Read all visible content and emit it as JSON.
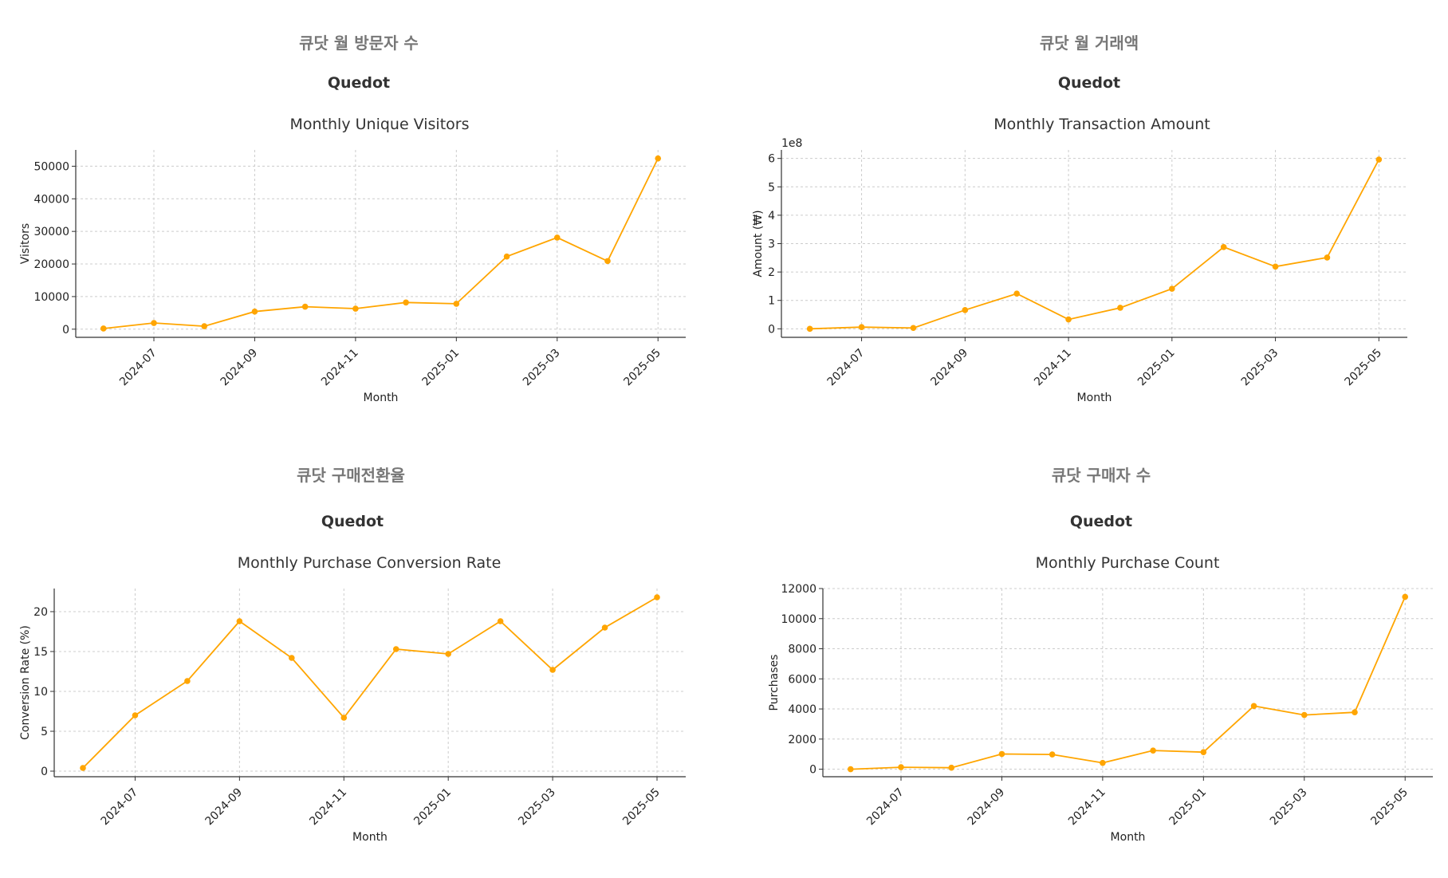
{
  "series_color": "#FFA500",
  "chart_data": [
    {
      "type": "line",
      "kr_title": "큐닷 월 방문자 수",
      "brand": "Quedot",
      "title": "Monthly Unique Visitors",
      "xlabel": "Month",
      "ylabel": "Visitors",
      "y_ticks": [
        "0",
        "10000",
        "20000",
        "30000",
        "40000",
        "50000"
      ],
      "y_tick_values": [
        0,
        10000,
        20000,
        30000,
        40000,
        50000
      ],
      "ylim": [
        -2500,
        55000
      ],
      "x_ticks": [
        "2024-07",
        "2024-09",
        "2024-11",
        "2025-01",
        "2025-03",
        "2025-05"
      ],
      "x": [
        "2024-06",
        "2024-07",
        "2024-08",
        "2024-09",
        "2024-10",
        "2024-11",
        "2024-12",
        "2025-01",
        "2025-02",
        "2025-03",
        "2025-04",
        "2025-05"
      ],
      "values": [
        200,
        1900,
        900,
        5400,
        6900,
        6300,
        8200,
        7800,
        22300,
        28100,
        20900,
        52400
      ],
      "grid": true
    },
    {
      "type": "line",
      "kr_title": "큐닷 월 거래액",
      "brand": "Quedot",
      "title": "Monthly Transaction Amount",
      "xlabel": "Month",
      "ylabel": "Amount (₩)",
      "offset_label": "1e8",
      "y_ticks": [
        "0",
        "1",
        "2",
        "3",
        "4",
        "5",
        "6"
      ],
      "y_tick_values": [
        0,
        100000000,
        200000000,
        300000000,
        400000000,
        500000000,
        600000000
      ],
      "ylim": [
        -30000000,
        630000000
      ],
      "x_ticks": [
        "2024-07",
        "2024-09",
        "2024-11",
        "2025-01",
        "2025-03",
        "2025-05"
      ],
      "x": [
        "2024-06",
        "2024-07",
        "2024-08",
        "2024-09",
        "2024-10",
        "2024-11",
        "2024-12",
        "2025-01",
        "2025-02",
        "2025-03",
        "2025-04",
        "2025-05"
      ],
      "values": [
        0,
        6000000,
        3000000,
        66000000,
        124000000,
        33000000,
        74000000,
        141000000,
        288000000,
        219000000,
        251000000,
        596000000
      ],
      "grid": true
    },
    {
      "type": "line",
      "kr_title": "큐닷 구매전환율",
      "brand": "Quedot",
      "title": "Monthly Purchase Conversion Rate",
      "xlabel": "Month",
      "ylabel": "Conversion Rate (%)",
      "y_ticks": [
        "0",
        "5",
        "10",
        "15",
        "20"
      ],
      "y_tick_values": [
        0,
        5,
        10,
        15,
        20
      ],
      "ylim": [
        -0.7,
        22.9
      ],
      "x_ticks": [
        "2024-07",
        "2024-09",
        "2024-11",
        "2025-01",
        "2025-03",
        "2025-05"
      ],
      "x": [
        "2024-06",
        "2024-07",
        "2024-08",
        "2024-09",
        "2024-10",
        "2024-11",
        "2024-12",
        "2025-01",
        "2025-02",
        "2025-03",
        "2025-04",
        "2025-05"
      ],
      "values": [
        0.4,
        7.0,
        11.3,
        18.8,
        14.2,
        6.7,
        15.3,
        14.7,
        18.8,
        12.7,
        18.0,
        21.8
      ],
      "grid": true
    },
    {
      "type": "line",
      "kr_title": "큐닷 구매자 수",
      "brand": "Quedot",
      "title": "Monthly Purchase Count",
      "xlabel": "Month",
      "ylabel": "Purchases",
      "y_ticks": [
        "0",
        "2000",
        "4000",
        "6000",
        "8000",
        "10000",
        "12000"
      ],
      "y_tick_values": [
        0,
        2000,
        4000,
        6000,
        8000,
        10000,
        12000
      ],
      "ylim": [
        -500,
        12000
      ],
      "x_ticks": [
        "2024-07",
        "2024-09",
        "2024-11",
        "2025-01",
        "2025-03",
        "2025-05"
      ],
      "x": [
        "2024-06",
        "2024-07",
        "2024-08",
        "2024-09",
        "2024-10",
        "2024-11",
        "2024-12",
        "2025-01",
        "2025-02",
        "2025-03",
        "2025-04",
        "2025-05"
      ],
      "values": [
        0,
        130,
        100,
        1010,
        980,
        420,
        1240,
        1130,
        4200,
        3600,
        3780,
        11450
      ],
      "grid": true
    }
  ]
}
